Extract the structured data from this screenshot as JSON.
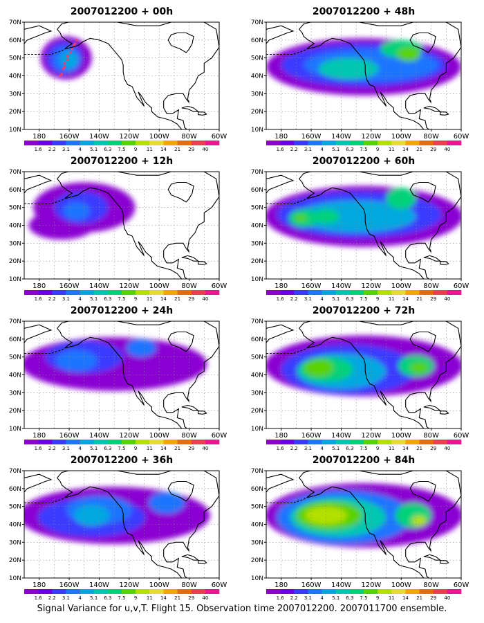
{
  "figure": {
    "caption": "Signal Variance for u,v,T. Flight 15. Observation time 2007012200. 2007011700 ensemble."
  },
  "axes": {
    "lat_labels": [
      "10N",
      "20N",
      "30N",
      "40N",
      "50N",
      "60N",
      "70N"
    ],
    "lon_labels": [
      "180",
      "160W",
      "140W",
      "120W",
      "100W",
      "80W",
      "60W"
    ]
  },
  "colorbar": {
    "labels": [
      "1.6",
      "2.2",
      "3.1",
      "4",
      "5.1",
      "6.3",
      "7.5",
      "9",
      "11",
      "14",
      "21",
      "29",
      "40"
    ],
    "colors": [
      "#8a00d2",
      "#6a00e8",
      "#3a3aff",
      "#1e74ff",
      "#00a8e0",
      "#00c8b0",
      "#00d27a",
      "#5ad200",
      "#b4e000",
      "#e6dc30",
      "#f0a800",
      "#f06a00",
      "#f03c50",
      "#f0148c"
    ]
  },
  "panels": [
    {
      "title": "2007012200 + 00h",
      "lead_hours": 0
    },
    {
      "title": "2007012200 + 48h",
      "lead_hours": 48
    },
    {
      "title": "2007012200 + 12h",
      "lead_hours": 12
    },
    {
      "title": "2007012200 + 60h",
      "lead_hours": 60
    },
    {
      "title": "2007012200 + 24h",
      "lead_hours": 24
    },
    {
      "title": "2007012200 + 72h",
      "lead_hours": 72
    },
    {
      "title": "2007012200 + 36h",
      "lead_hours": 36
    },
    {
      "title": "2007012200 + 84h",
      "lead_hours": 84
    }
  ]
}
